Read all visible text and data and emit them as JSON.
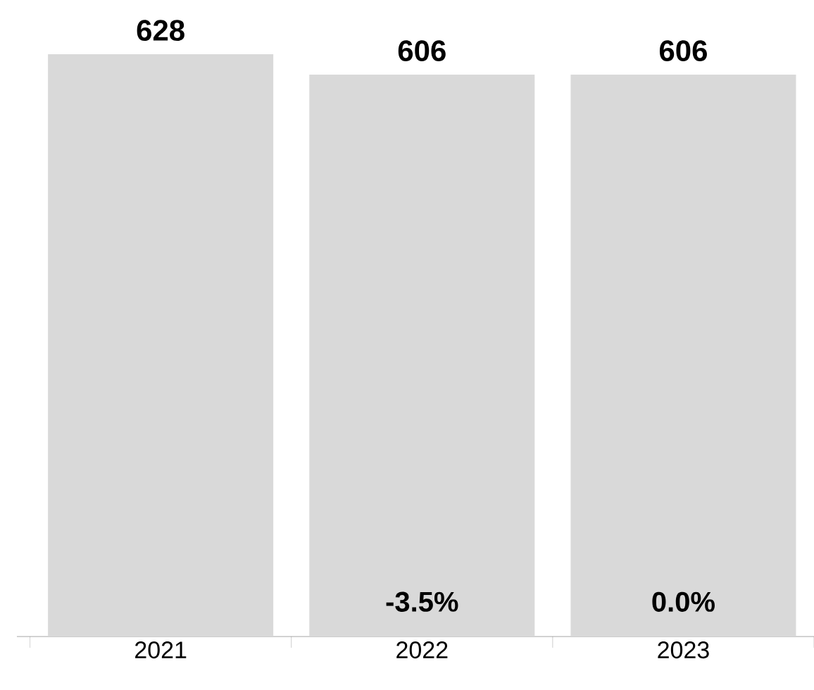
{
  "chart_data": {
    "type": "bar",
    "categories": [
      "2021",
      "2022",
      "2023"
    ],
    "values": [
      628,
      606,
      606
    ],
    "color": "#d9d9d9",
    "data_labels": true,
    "annotations": [
      "-3.5%",
      "0.0%"
    ]
  }
}
